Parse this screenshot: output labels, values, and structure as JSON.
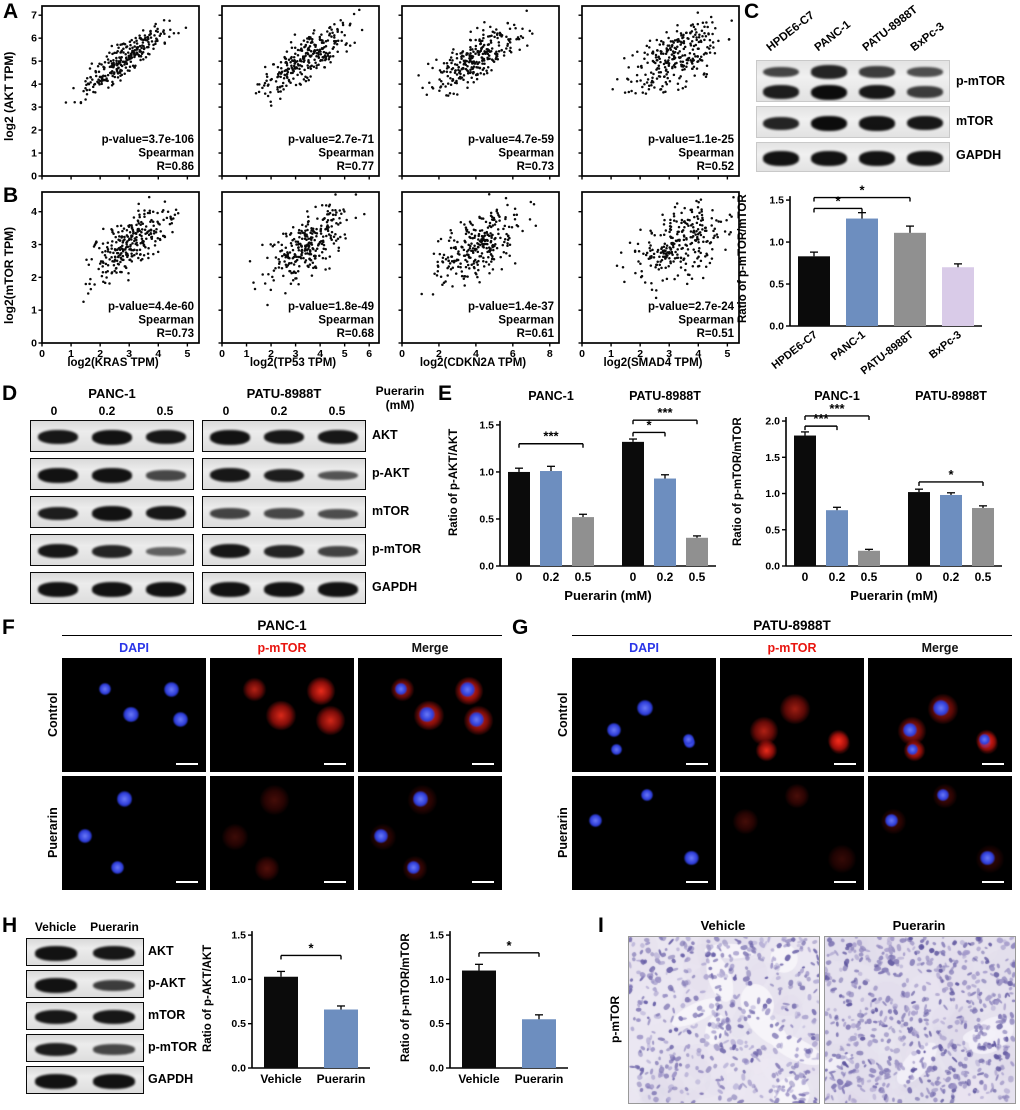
{
  "colors": {
    "black": "#0b0b0b",
    "blue": "#6d8ebf",
    "gray": "#909090",
    "purple": "#d9cbe8"
  },
  "panel_a": {
    "label": "A",
    "ylabel": "log2 (AKT TPM)",
    "yticks": [
      "0",
      "1",
      "2",
      "3",
      "4",
      "5",
      "6",
      "7"
    ],
    "plots": [
      {
        "pvalue": "p-value=3.7e-106",
        "spearman": "Spearman",
        "r": "R=0.86"
      },
      {
        "pvalue": "p-value=2.7e-71",
        "spearman": "Spearman",
        "r": "R=0.77"
      },
      {
        "pvalue": "p-value=4.7e-59",
        "spearman": "Spearman",
        "r": "R=0.73"
      },
      {
        "pvalue": "p-value=1.1e-25",
        "spearman": "Spearman",
        "r": "R=0.52"
      }
    ]
  },
  "panel_b": {
    "label": "B",
    "ylabel": "log2(mTOR TPM)",
    "yticks": [
      "0",
      "1",
      "2",
      "3",
      "4"
    ],
    "plots": [
      {
        "pvalue": "p-value=4.4e-60",
        "spearman": "Spearman",
        "r": "R=0.73",
        "xlabel": "log2(KRAS TPM)",
        "xticks": [
          "0",
          "1",
          "2",
          "3",
          "4",
          "5"
        ]
      },
      {
        "pvalue": "p-value=1.8e-49",
        "spearman": "Spearman",
        "r": "R=0.68",
        "xlabel": "log2(TP53 TPM)",
        "xticks": [
          "0",
          "1",
          "2",
          "3",
          "4",
          "5",
          "6"
        ]
      },
      {
        "pvalue": "p-value=1.4e-37",
        "spearman": "Spearman",
        "r": "R=0.61",
        "xlabel": "log2(CDKN2A TPM)",
        "xticks": [
          "0",
          "2",
          "4",
          "6",
          "8"
        ]
      },
      {
        "pvalue": "p-value=2.7e-24",
        "spearman": "Spearman",
        "r": "R=0.51",
        "xlabel": "log2(SMAD4 TPM)",
        "xticks": [
          "0",
          "1",
          "2",
          "3",
          "4",
          "5"
        ]
      }
    ]
  },
  "panel_c": {
    "label": "C",
    "lanes": [
      "HPDE6-C7",
      "PANC-1",
      "PATU-8988T",
      "BxPc-3"
    ],
    "blot_rows": [
      "p-mTOR",
      "mTOR",
      "GAPDH"
    ],
    "chart": {
      "ylabel": "Ratio of p-mTOR/mTOR",
      "yticks": [
        "0.0",
        "0.5",
        "1.0",
        "1.5"
      ],
      "categories": [
        "HPDE6-C7",
        "PANC-1",
        "PATU-8988T",
        "BxPc-3"
      ],
      "values": [
        0.83,
        1.28,
        1.11,
        0.7
      ],
      "errors": [
        0.05,
        0.07,
        0.08,
        0.04
      ],
      "bar_colors": [
        "black",
        "blue",
        "gray",
        "purple"
      ],
      "sig": [
        {
          "from": 0,
          "to": 1,
          "label": "*",
          "y": 1.4
        },
        {
          "from": 0,
          "to": 2,
          "label": "*",
          "y": 1.53
        }
      ]
    }
  },
  "panel_d": {
    "label": "D",
    "groups": [
      "PANC-1",
      "PATU-8988T"
    ],
    "doses": [
      "0",
      "0.2",
      "0.5"
    ],
    "treatment_line1": "Puerarin",
    "treatment_line2": "(mM)",
    "rows": [
      "AKT",
      "p-AKT",
      "mTOR",
      "p-mTOR",
      "GAPDH"
    ]
  },
  "panel_e": {
    "label": "E",
    "charts": [
      {
        "group_labels": [
          "PANC-1",
          "PATU-8988T"
        ],
        "ylabel": "Ratio of p-AKT/AKT",
        "yticks": [
          "0.0",
          "0.5",
          "1.0",
          "1.5"
        ],
        "categories": [
          "0",
          "0.2",
          "0.5",
          "0",
          "0.2",
          "0.5"
        ],
        "xlabel": "Puerarin (mM)",
        "values": [
          1.0,
          1.01,
          0.52,
          1.32,
          0.93,
          0.3
        ],
        "errors": [
          0.04,
          0.05,
          0.03,
          0.03,
          0.04,
          0.02
        ],
        "bar_colors": [
          "black",
          "blue",
          "gray",
          "black",
          "blue",
          "gray"
        ],
        "sig": [
          {
            "from": 0,
            "to": 2,
            "label": "***",
            "y": 1.3
          },
          {
            "from": 3,
            "to": 4,
            "label": "*",
            "y": 1.42
          },
          {
            "from": 3,
            "to": 5,
            "label": "***",
            "y": 1.55
          }
        ]
      },
      {
        "group_labels": [
          "PANC-1",
          "PATU-8988T"
        ],
        "ylabel": "Ratio of p-mTOR/mTOR",
        "yticks": [
          "0.0",
          "0.5",
          "1.0",
          "1.5",
          "2.0"
        ],
        "categories": [
          "0",
          "0.2",
          "0.5",
          "0",
          "0.2",
          "0.5"
        ],
        "xlabel": "Puerarin (mM)",
        "values": [
          1.8,
          0.77,
          0.21,
          1.02,
          0.98,
          0.8
        ],
        "errors": [
          0.05,
          0.04,
          0.02,
          0.04,
          0.03,
          0.03
        ],
        "bar_colors": [
          "black",
          "blue",
          "gray",
          "black",
          "blue",
          "gray"
        ],
        "sig": [
          {
            "from": 0,
            "to": 1,
            "label": "***",
            "y": 1.93
          },
          {
            "from": 0,
            "to": 2,
            "label": "***",
            "y": 2.07
          },
          {
            "from": 3,
            "to": 5,
            "label": "*",
            "y": 1.16
          }
        ]
      }
    ]
  },
  "panel_f": {
    "label": "F",
    "title": "PANC-1",
    "columns": [
      {
        "label": "DAPI",
        "color": "#2a35e8"
      },
      {
        "label": "p-mTOR",
        "color": "#e8150f"
      },
      {
        "label": "Merge",
        "color": "#111111"
      }
    ],
    "rows": [
      "Control",
      "Puerarin"
    ]
  },
  "panel_g": {
    "label": "G",
    "title": "PATU-8988T",
    "columns": [
      {
        "label": "DAPI",
        "color": "#2a35e8"
      },
      {
        "label": "p-mTOR",
        "color": "#e8150f"
      },
      {
        "label": "Merge",
        "color": "#111111"
      }
    ],
    "rows": [
      "Control",
      "Puerarin"
    ]
  },
  "panel_h": {
    "label": "H",
    "lanes": [
      "Vehicle",
      "Puerarin"
    ],
    "rows": [
      "AKT",
      "p-AKT",
      "mTOR",
      "p-mTOR",
      "GAPDH"
    ],
    "charts": [
      {
        "ylabel": "Ratio of p-AKT/AKT",
        "yticks": [
          "0.0",
          "0.5",
          "1.0",
          "1.5"
        ],
        "categories": [
          "Vehicle",
          "Puerarin"
        ],
        "values": [
          1.03,
          0.66
        ],
        "errors": [
          0.06,
          0.04
        ],
        "bar_colors": [
          "black",
          "blue"
        ],
        "sig": [
          {
            "from": 0,
            "to": 1,
            "label": "*",
            "y": 1.27
          }
        ]
      },
      {
        "ylabel": "Ratio of p-mTOR/mTOR",
        "yticks": [
          "0.0",
          "0.5",
          "1.0",
          "1.5"
        ],
        "categories": [
          "Vehicle",
          "Puerarin"
        ],
        "values": [
          1.1,
          0.55
        ],
        "errors": [
          0.07,
          0.05
        ],
        "bar_colors": [
          "black",
          "blue"
        ],
        "sig": [
          {
            "from": 0,
            "to": 1,
            "label": "*",
            "y": 1.3
          }
        ]
      }
    ]
  },
  "panel_i": {
    "label": "I",
    "titles": [
      "Vehicle",
      "Puerarin"
    ],
    "row_label": "p-mTOR"
  },
  "chart_data": [
    {
      "type": "scatter",
      "ylabel": "log2 (AKT TPM)",
      "xlabel": "log2(KRAS TPM)",
      "annotation": "p-value=3.7e-106, Spearman R=0.86"
    },
    {
      "type": "scatter",
      "ylabel": "log2 (AKT TPM)",
      "xlabel": "log2(TP53 TPM)",
      "annotation": "p-value=2.7e-71, Spearman R=0.77"
    },
    {
      "type": "scatter",
      "ylabel": "log2 (AKT TPM)",
      "xlabel": "log2(CDKN2A TPM)",
      "annotation": "p-value=4.7e-59, Spearman R=0.73"
    },
    {
      "type": "scatter",
      "ylabel": "log2 (AKT TPM)",
      "xlabel": "log2(SMAD4 TPM)",
      "annotation": "p-value=1.1e-25, Spearman R=0.52"
    },
    {
      "type": "scatter",
      "ylabel": "log2(mTOR TPM)",
      "xlabel": "log2(KRAS TPM)",
      "annotation": "p-value=4.4e-60, Spearman R=0.73"
    },
    {
      "type": "scatter",
      "ylabel": "log2(mTOR TPM)",
      "xlabel": "log2(TP53 TPM)",
      "annotation": "p-value=1.8e-49, Spearman R=0.68"
    },
    {
      "type": "scatter",
      "ylabel": "log2(mTOR TPM)",
      "xlabel": "log2(CDKN2A TPM)",
      "annotation": "p-value=1.4e-37, Spearman R=0.61"
    },
    {
      "type": "scatter",
      "ylabel": "log2(mTOR TPM)",
      "xlabel": "log2(SMAD4 TPM)",
      "annotation": "p-value=2.7e-24, Spearman R=0.51"
    },
    {
      "type": "bar",
      "ylabel": "Ratio of p-mTOR/mTOR",
      "categories": [
        "HPDE6-C7",
        "PANC-1",
        "PATU-8988T",
        "BxPc-3"
      ],
      "values": [
        0.83,
        1.28,
        1.11,
        0.7
      ],
      "ylim": [
        0,
        1.5
      ]
    },
    {
      "type": "bar",
      "ylabel": "Ratio of p-AKT/AKT",
      "categories": [
        "PANC-1 0",
        "PANC-1 0.2",
        "PANC-1 0.5",
        "PATU-8988T 0",
        "PATU-8988T 0.2",
        "PATU-8988T 0.5"
      ],
      "values": [
        1.0,
        1.01,
        0.52,
        1.32,
        0.93,
        0.3
      ],
      "ylim": [
        0,
        1.5
      ]
    },
    {
      "type": "bar",
      "ylabel": "Ratio of p-mTOR/mTOR",
      "categories": [
        "PANC-1 0",
        "PANC-1 0.2",
        "PANC-1 0.5",
        "PATU-8988T 0",
        "PATU-8988T 0.2",
        "PATU-8988T 0.5"
      ],
      "values": [
        1.8,
        0.77,
        0.21,
        1.02,
        0.98,
        0.8
      ],
      "ylim": [
        0,
        2.0
      ]
    },
    {
      "type": "bar",
      "ylabel": "Ratio of p-AKT/AKT",
      "categories": [
        "Vehicle",
        "Puerarin"
      ],
      "values": [
        1.03,
        0.66
      ],
      "ylim": [
        0,
        1.5
      ]
    },
    {
      "type": "bar",
      "ylabel": "Ratio of p-mTOR/mTOR",
      "categories": [
        "Vehicle",
        "Puerarin"
      ],
      "values": [
        1.1,
        0.55
      ],
      "ylim": [
        0,
        1.5
      ]
    }
  ]
}
